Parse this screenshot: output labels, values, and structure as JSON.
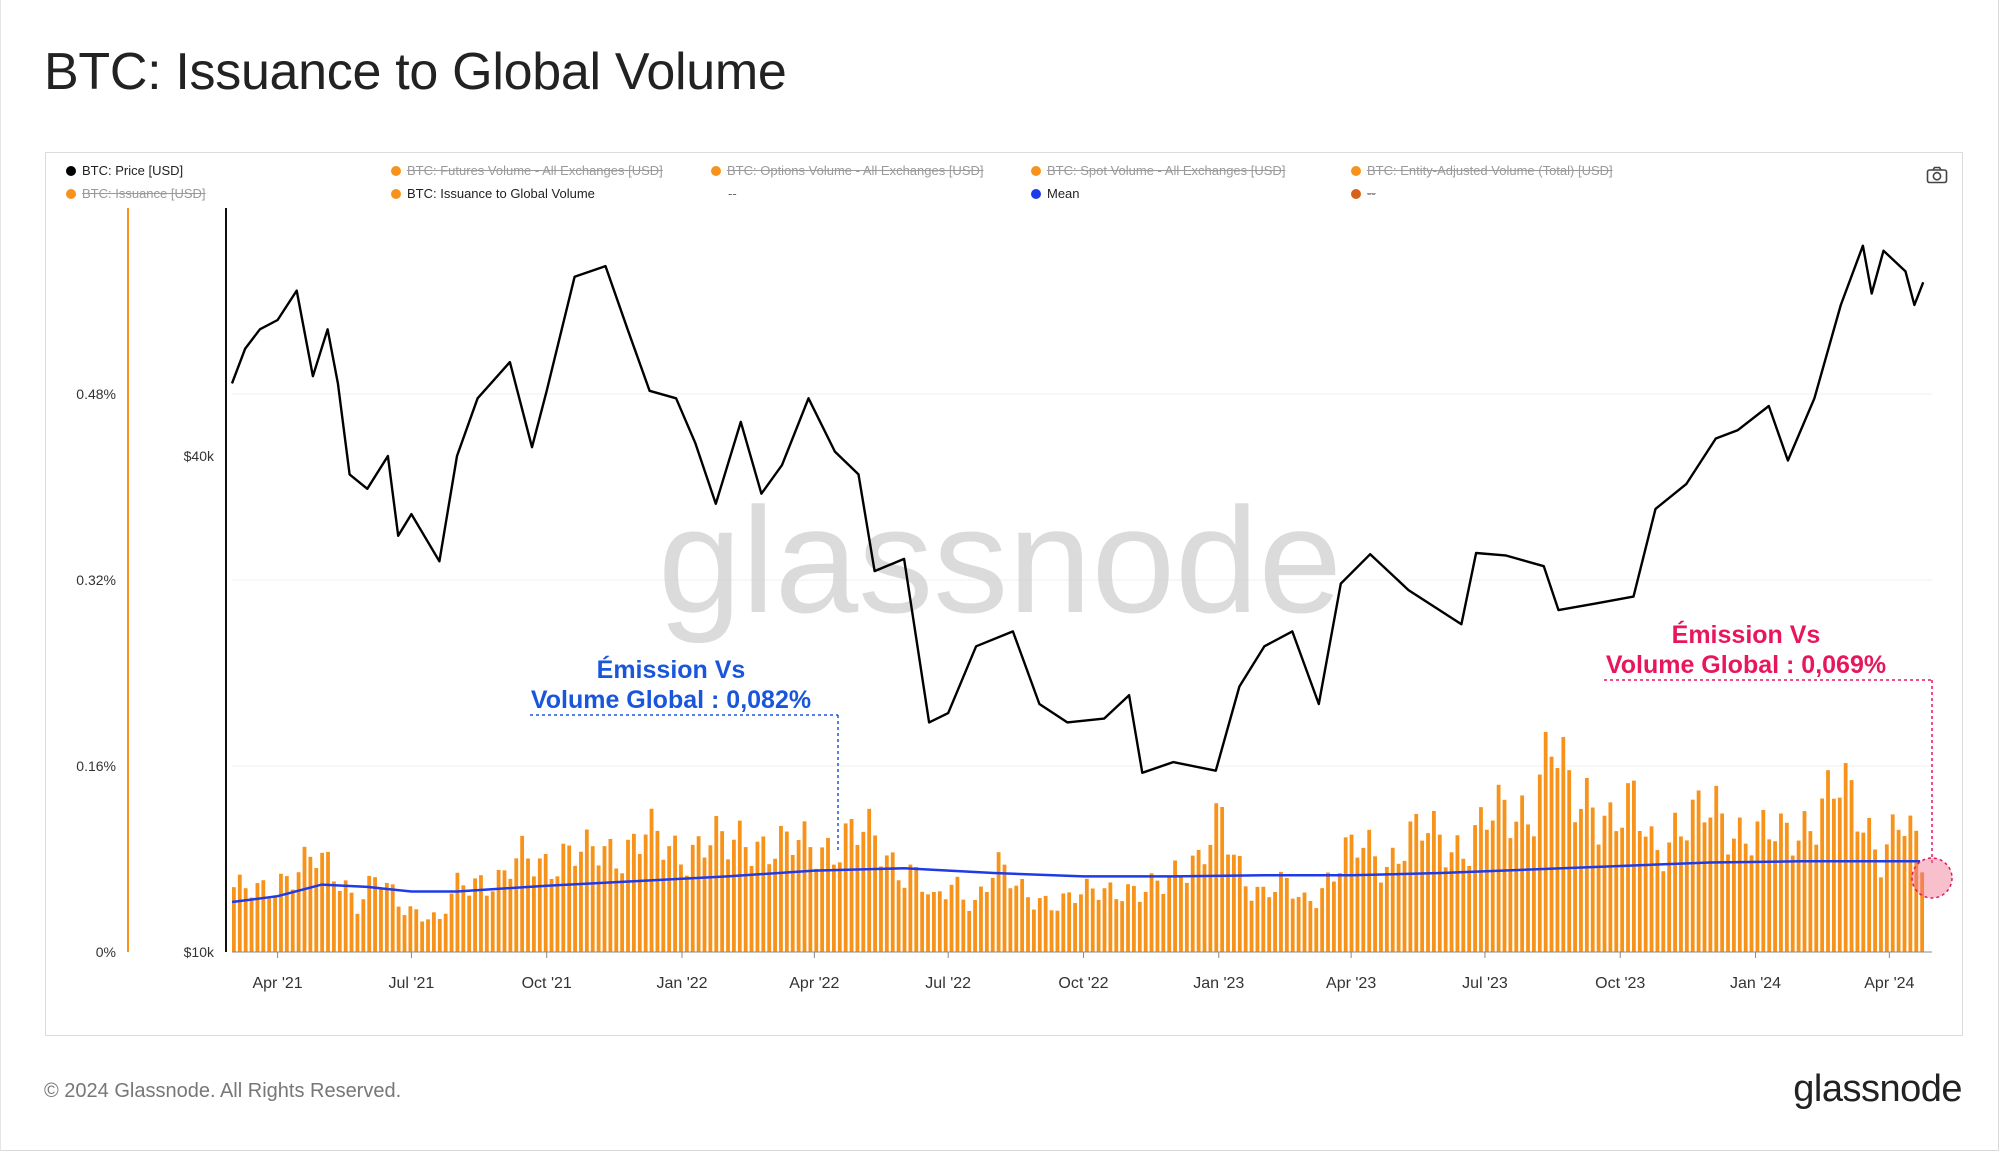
{
  "title": "BTC: Issuance to Global Volume",
  "legend": [
    {
      "label": "BTC: Price [USD]",
      "color": "#000000",
      "active": true
    },
    {
      "label": "BTC: Futures Volume - All Exchanges [USD]",
      "color": "#f7931a",
      "active": false
    },
    {
      "label": "BTC: Options Volume - All Exchanges [USD]",
      "color": "#f7931a",
      "active": false
    },
    {
      "label": "BTC: Spot Volume - All Exchanges [USD]",
      "color": "#f7931a",
      "active": false
    },
    {
      "label": "BTC: Entity-Adjusted Volume (Total) [USD]",
      "color": "#f7931a",
      "active": false
    },
    {
      "label": "BTC: Issuance [USD]",
      "color": "#f7931a",
      "active": false
    },
    {
      "label": "BTC: Issuance to Global Volume",
      "color": "#f7931a",
      "active": true
    },
    {
      "label": "--",
      "color": "",
      "active": true
    },
    {
      "label": "Mean",
      "color": "#1f3be8",
      "active": true
    },
    {
      "label": "--",
      "color": "#d8601a",
      "active": false
    }
  ],
  "watermark": "glassnode",
  "annotations": [
    {
      "line1": "Émission Vs",
      "line2": "Volume Global : 0,082%",
      "color": "#1a56db"
    },
    {
      "line1": "Émission Vs",
      "line2": "Volume Global : 0,069%",
      "color": "#e8175d"
    }
  ],
  "footer": {
    "copyright": "© 2024 Glassnode. All Rights Reserved.",
    "logo": "glassnode"
  },
  "icons": {
    "camera": "camera-icon"
  },
  "chart_data": {
    "type": "bar",
    "x_ticks": [
      "Apr '21",
      "Jul '21",
      "Oct '21",
      "Jan '22",
      "Apr '22",
      "Jul '22",
      "Oct '22",
      "Jan '23",
      "Apr '23",
      "Jul '23",
      "Oct '23",
      "Jan '24",
      "Apr '24"
    ],
    "y_left_ticks": [
      "0%",
      "0.16%",
      "0.32%",
      "0.48%"
    ],
    "y_left_range": [
      0,
      0.64
    ],
    "y_right_ticks": [
      "$10k",
      "$40k"
    ],
    "y_right_scale": "log",
    "y_right_range": [
      10000,
      80000
    ],
    "x_range": [
      "2021-03-01",
      "2024-04-30"
    ],
    "series": [
      {
        "name": "BTC: Issuance to Global Volume",
        "kind": "bar",
        "color": "#f7931a",
        "unit": "%",
        "points": [
          [
            "2021-03-01",
            0.05
          ],
          [
            "2021-03-15",
            0.055
          ],
          [
            "2021-03-29",
            0.063
          ],
          [
            "2021-04-12",
            0.062
          ],
          [
            "2021-04-26",
            0.08
          ],
          [
            "2021-05-10",
            0.075
          ],
          [
            "2021-05-24",
            0.04
          ],
          [
            "2021-06-07",
            0.06
          ],
          [
            "2021-06-21",
            0.045
          ],
          [
            "2021-07-05",
            0.035
          ],
          [
            "2021-07-19",
            0.025
          ],
          [
            "2021-08-02",
            0.06
          ],
          [
            "2021-08-16",
            0.065
          ],
          [
            "2021-08-30",
            0.06
          ],
          [
            "2021-09-13",
            0.078
          ],
          [
            "2021-09-27",
            0.08
          ],
          [
            "2021-10-11",
            0.085
          ],
          [
            "2021-10-25",
            0.08
          ],
          [
            "2021-11-08",
            0.088
          ],
          [
            "2021-11-22",
            0.092
          ],
          [
            "2021-12-06",
            0.1
          ],
          [
            "2021-12-20",
            0.085
          ],
          [
            "2022-01-03",
            0.09
          ],
          [
            "2022-01-17",
            0.1
          ],
          [
            "2022-01-31",
            0.085
          ],
          [
            "2022-02-14",
            0.1
          ],
          [
            "2022-02-28",
            0.095
          ],
          [
            "2022-03-14",
            0.088
          ],
          [
            "2022-03-28",
            0.09
          ],
          [
            "2022-04-11",
            0.095
          ],
          [
            "2022-04-25",
            0.1
          ],
          [
            "2022-05-09",
            0.095
          ],
          [
            "2022-05-23",
            0.08
          ],
          [
            "2022-06-06",
            0.07
          ],
          [
            "2022-06-20",
            0.04
          ],
          [
            "2022-07-04",
            0.06
          ],
          [
            "2022-07-18",
            0.045
          ],
          [
            "2022-08-01",
            0.07
          ],
          [
            "2022-08-15",
            0.055
          ],
          [
            "2022-08-29",
            0.05
          ],
          [
            "2022-09-12",
            0.04
          ],
          [
            "2022-09-26",
            0.045
          ],
          [
            "2022-10-10",
            0.06
          ],
          [
            "2022-10-24",
            0.055
          ],
          [
            "2022-11-07",
            0.045
          ],
          [
            "2022-11-21",
            0.06
          ],
          [
            "2022-12-05",
            0.08
          ],
          [
            "2022-12-19",
            0.075
          ],
          [
            "2023-01-02",
            0.11
          ],
          [
            "2023-01-16",
            0.07
          ],
          [
            "2023-01-30",
            0.05
          ],
          [
            "2023-02-13",
            0.055
          ],
          [
            "2023-02-27",
            0.045
          ],
          [
            "2023-03-13",
            0.06
          ],
          [
            "2023-03-27",
            0.08
          ],
          [
            "2023-04-10",
            0.09
          ],
          [
            "2023-04-24",
            0.08
          ],
          [
            "2023-05-08",
            0.095
          ],
          [
            "2023-05-22",
            0.1
          ],
          [
            "2023-06-05",
            0.095
          ],
          [
            "2023-06-19",
            0.095
          ],
          [
            "2023-07-03",
            0.11
          ],
          [
            "2023-07-17",
            0.12
          ],
          [
            "2023-07-31",
            0.13
          ],
          [
            "2023-08-14",
            0.175
          ],
          [
            "2023-08-28",
            0.125
          ],
          [
            "2023-09-11",
            0.14
          ],
          [
            "2023-09-25",
            0.11
          ],
          [
            "2023-10-09",
            0.12
          ],
          [
            "2023-10-23",
            0.09
          ],
          [
            "2023-11-06",
            0.11
          ],
          [
            "2023-11-20",
            0.11
          ],
          [
            "2023-12-04",
            0.12
          ],
          [
            "2023-12-18",
            0.11
          ],
          [
            "2024-01-01",
            0.1
          ],
          [
            "2024-01-15",
            0.095
          ],
          [
            "2024-01-29",
            0.11
          ],
          [
            "2024-02-12",
            0.125
          ],
          [
            "2024-02-26",
            0.135
          ],
          [
            "2024-03-11",
            0.12
          ],
          [
            "2024-03-25",
            0.09
          ],
          [
            "2024-04-08",
            0.11
          ],
          [
            "2024-04-22",
            0.075
          ]
        ]
      },
      {
        "name": "Mean",
        "kind": "line",
        "color": "#1f3be8",
        "unit": "%",
        "points": [
          [
            "2021-03-01",
            0.043
          ],
          [
            "2021-04-01",
            0.048
          ],
          [
            "2021-05-01",
            0.058
          ],
          [
            "2021-06-01",
            0.056
          ],
          [
            "2021-07-01",
            0.052
          ],
          [
            "2021-08-01",
            0.052
          ],
          [
            "2021-10-01",
            0.057
          ],
          [
            "2021-12-01",
            0.061
          ],
          [
            "2022-02-01",
            0.065
          ],
          [
            "2022-04-01",
            0.07
          ],
          [
            "2022-06-01",
            0.072
          ],
          [
            "2022-08-01",
            0.068
          ],
          [
            "2022-10-01",
            0.065
          ],
          [
            "2022-12-01",
            0.065
          ],
          [
            "2023-02-01",
            0.066
          ],
          [
            "2023-04-01",
            0.066
          ],
          [
            "2023-06-01",
            0.068
          ],
          [
            "2023-08-01",
            0.071
          ],
          [
            "2023-10-01",
            0.074
          ],
          [
            "2023-12-01",
            0.077
          ],
          [
            "2024-02-01",
            0.078
          ],
          [
            "2024-04-22",
            0.078
          ]
        ]
      },
      {
        "name": "BTC: Price [USD]",
        "kind": "line",
        "color": "#000000",
        "unit": "USD",
        "axis": "right",
        "points": [
          [
            "2021-03-01",
            49000
          ],
          [
            "2021-03-10",
            54000
          ],
          [
            "2021-03-20",
            57000
          ],
          [
            "2021-04-01",
            58500
          ],
          [
            "2021-04-14",
            63500
          ],
          [
            "2021-04-25",
            50000
          ],
          [
            "2021-05-05",
            57000
          ],
          [
            "2021-05-12",
            49000
          ],
          [
            "2021-05-20",
            38000
          ],
          [
            "2021-06-01",
            36500
          ],
          [
            "2021-06-15",
            40000
          ],
          [
            "2021-06-22",
            32000
          ],
          [
            "2021-07-01",
            34000
          ],
          [
            "2021-07-20",
            29800
          ],
          [
            "2021-08-01",
            40000
          ],
          [
            "2021-08-15",
            47000
          ],
          [
            "2021-09-06",
            52000
          ],
          [
            "2021-09-21",
            41000
          ],
          [
            "2021-10-01",
            48000
          ],
          [
            "2021-10-20",
            66000
          ],
          [
            "2021-11-10",
            68000
          ],
          [
            "2021-11-25",
            57000
          ],
          [
            "2021-12-10",
            48000
          ],
          [
            "2021-12-28",
            47000
          ],
          [
            "2022-01-10",
            41500
          ],
          [
            "2022-01-24",
            35000
          ],
          [
            "2022-02-10",
            44000
          ],
          [
            "2022-02-24",
            36000
          ],
          [
            "2022-03-10",
            39000
          ],
          [
            "2022-03-28",
            47000
          ],
          [
            "2022-04-15",
            40500
          ],
          [
            "2022-05-01",
            38000
          ],
          [
            "2022-05-12",
            29000
          ],
          [
            "2022-06-01",
            30000
          ],
          [
            "2022-06-18",
            19000
          ],
          [
            "2022-07-01",
            19500
          ],
          [
            "2022-07-20",
            23500
          ],
          [
            "2022-08-14",
            24500
          ],
          [
            "2022-09-01",
            20000
          ],
          [
            "2022-09-20",
            19000
          ],
          [
            "2022-10-15",
            19200
          ],
          [
            "2022-11-01",
            20500
          ],
          [
            "2022-11-10",
            16500
          ],
          [
            "2022-12-01",
            17000
          ],
          [
            "2022-12-30",
            16600
          ],
          [
            "2023-01-15",
            21000
          ],
          [
            "2023-02-01",
            23500
          ],
          [
            "2023-02-20",
            24500
          ],
          [
            "2023-03-10",
            20000
          ],
          [
            "2023-03-25",
            28000
          ],
          [
            "2023-04-14",
            30400
          ],
          [
            "2023-05-10",
            27500
          ],
          [
            "2023-06-15",
            25000
          ],
          [
            "2023-06-25",
            30500
          ],
          [
            "2023-07-15",
            30300
          ],
          [
            "2023-08-10",
            29400
          ],
          [
            "2023-08-20",
            26000
          ],
          [
            "2023-09-15",
            26500
          ],
          [
            "2023-10-10",
            27000
          ],
          [
            "2023-10-25",
            34500
          ],
          [
            "2023-11-15",
            37000
          ],
          [
            "2023-12-05",
            42000
          ],
          [
            "2023-12-20",
            43000
          ],
          [
            "2024-01-10",
            46000
          ],
          [
            "2024-01-23",
            39500
          ],
          [
            "2024-02-10",
            47000
          ],
          [
            "2024-02-28",
            61000
          ],
          [
            "2024-03-14",
            72000
          ],
          [
            "2024-03-20",
            63000
          ],
          [
            "2024-03-28",
            71000
          ],
          [
            "2024-04-12",
            67000
          ],
          [
            "2024-04-18",
            61000
          ],
          [
            "2024-04-24",
            65000
          ]
        ]
      }
    ]
  }
}
